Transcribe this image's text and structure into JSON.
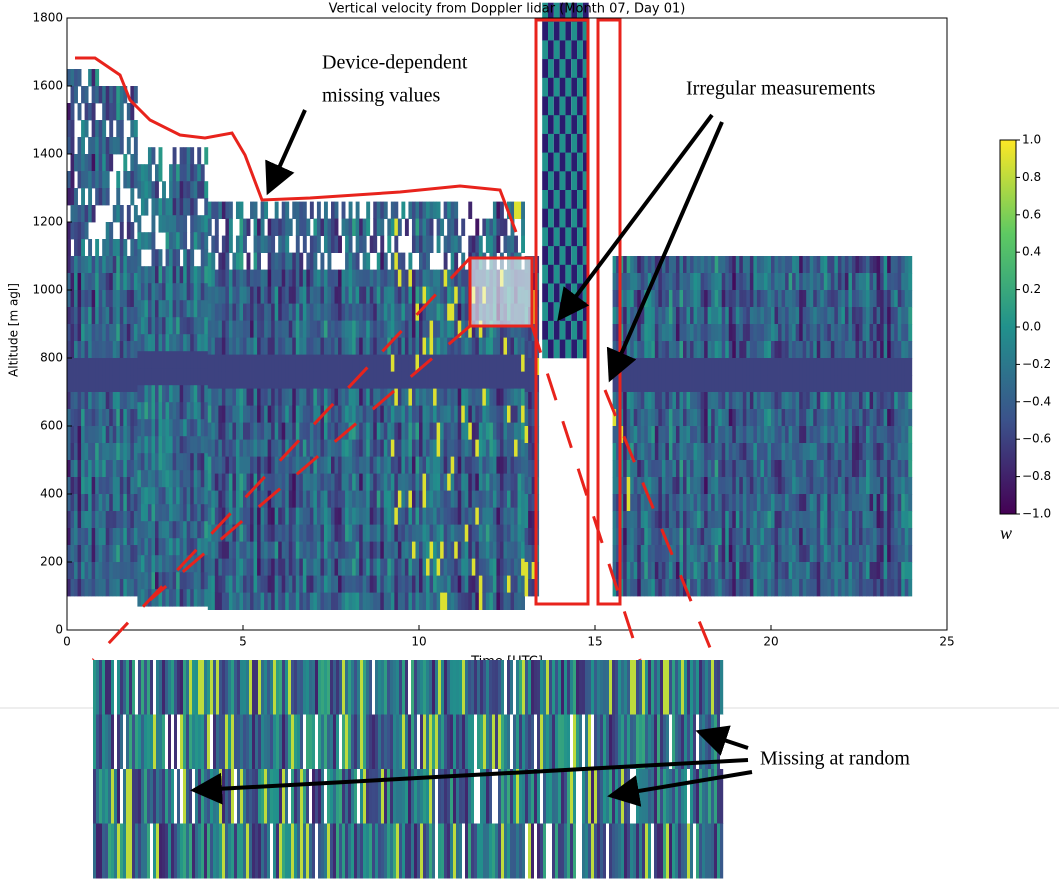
{
  "chart_data": {
    "type": "heatmap",
    "title": "Vertical velocity from Doppler lidar (Month 07, Day 01)",
    "x_label": "Time [UTC]",
    "y_label": "Altitude [m agl]",
    "xlim": [
      0,
      25
    ],
    "xticks": [
      0,
      5,
      10,
      15,
      20,
      25
    ],
    "ylim": [
      0,
      1800
    ],
    "yticks": [
      0,
      200,
      400,
      600,
      800,
      1000,
      1200,
      1400,
      1600,
      1800
    ],
    "colorbar": {
      "label": "w",
      "lim": [
        -1,
        1
      ],
      "ticks": [
        {
          "value": 1,
          "label": "1.0"
        },
        {
          "value": 0.8,
          "label": "0.8"
        },
        {
          "value": 0.6,
          "label": "0.6"
        },
        {
          "value": 0.4,
          "label": "0.4"
        },
        {
          "value": 0.2,
          "label": "0.2"
        },
        {
          "value": 0,
          "label": "0.0"
        },
        {
          "value": -0.2,
          "label": "−0.2"
        },
        {
          "value": -0.4,
          "label": "−0.4"
        },
        {
          "value": -0.6,
          "label": "−0.6"
        },
        {
          "value": -0.8,
          "label": "−0.8"
        },
        {
          "value": -1,
          "label": "−1.0"
        }
      ]
    },
    "annotations": {
      "device": [
        "Device-dependent",
        "missing values"
      ],
      "irregular": "Irregular measurements",
      "random": "Missing at random"
    }
  }
}
